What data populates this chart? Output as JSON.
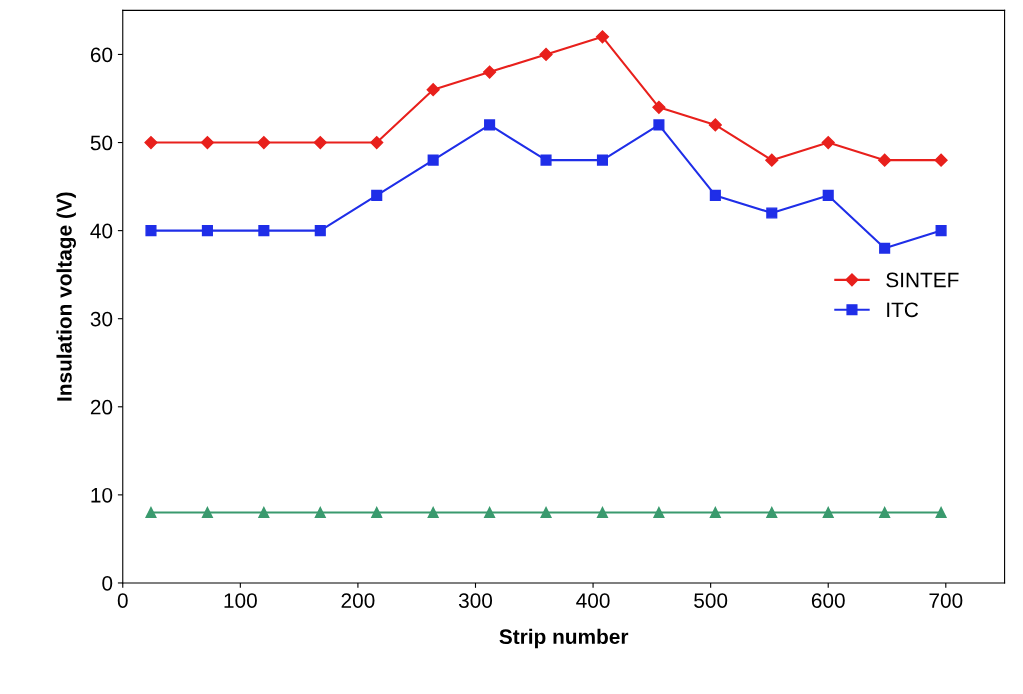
{
  "chart_data": {
    "type": "line",
    "xlabel": "Strip number",
    "ylabel": "Insulation voltage (V)",
    "x": [
      24,
      72,
      120,
      168,
      216,
      264,
      312,
      360,
      408,
      456,
      504,
      552,
      600,
      648,
      696
    ],
    "series": [
      {
        "name": "SINTEF",
        "color": "#e8201c",
        "marker": "diamond",
        "values": [
          50,
          50,
          50,
          50,
          50,
          56,
          58,
          60,
          62,
          54,
          52,
          48,
          50,
          48,
          48
        ]
      },
      {
        "name": "ITC",
        "color": "#1f2ee8",
        "marker": "square",
        "values": [
          40,
          40,
          40,
          40,
          44,
          48,
          52,
          48,
          48,
          52,
          44,
          42,
          44,
          38,
          40
        ]
      },
      {
        "color": "#3a9a6e",
        "marker": "triangle",
        "values": [
          8,
          8,
          8,
          8,
          8,
          8,
          8,
          8,
          8,
          8,
          8,
          8,
          8,
          8,
          8
        ]
      }
    ],
    "xlim": [
      0,
      750
    ],
    "xticks": [
      0,
      100,
      200,
      300,
      400,
      500,
      600,
      700
    ],
    "ylim": [
      0,
      65
    ],
    "yticks": [
      0,
      10,
      20,
      30,
      40,
      50,
      60
    ],
    "grid": false,
    "legend": "right",
    "line_style": "solid"
  }
}
